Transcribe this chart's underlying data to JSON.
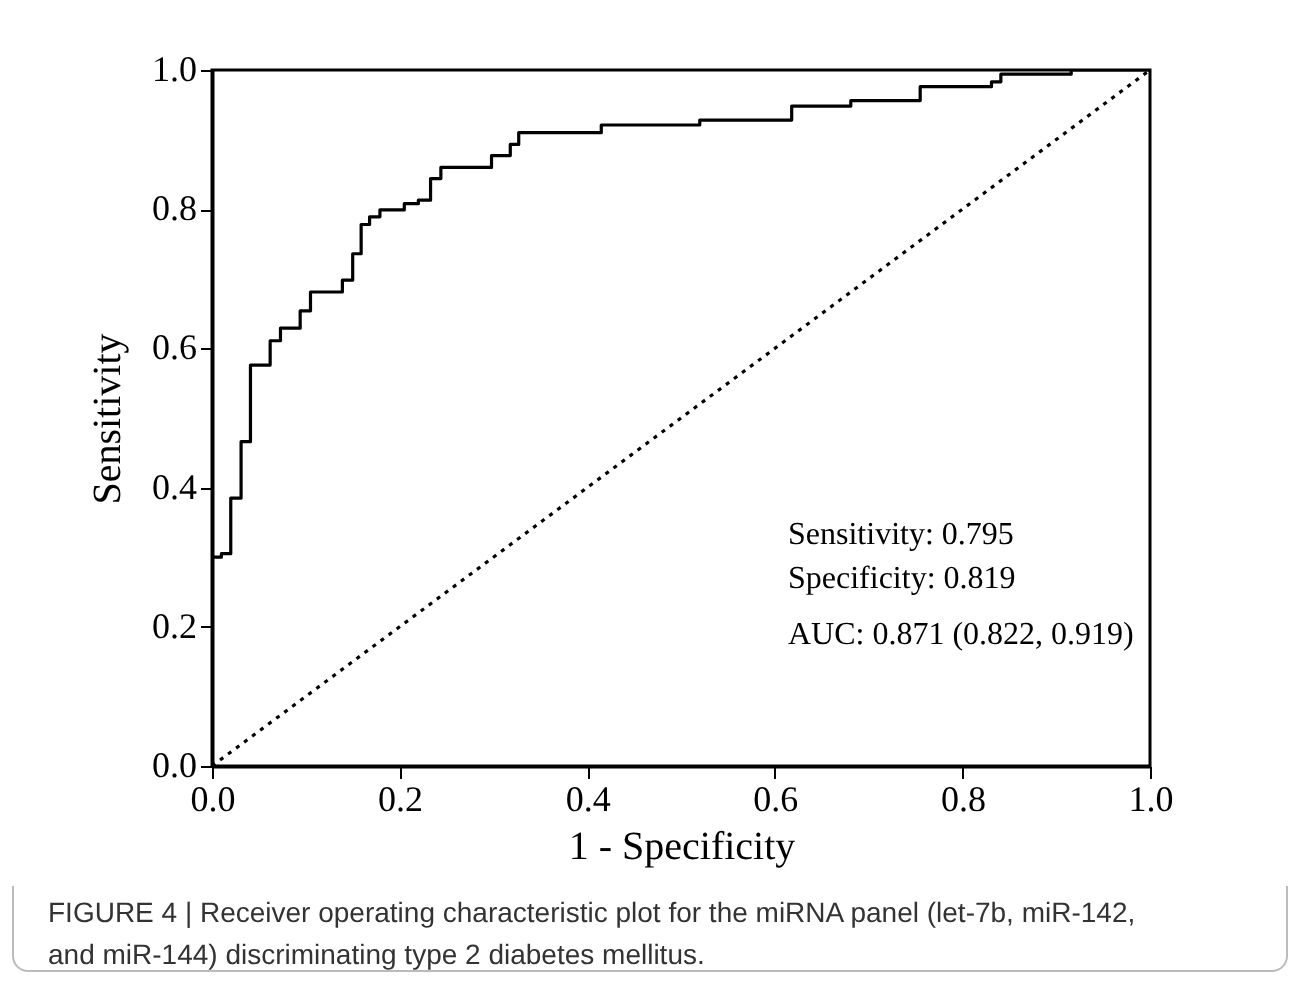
{
  "chart_data": {
    "type": "step",
    "xlabel": "1 - Specificity",
    "ylabel": "Sensitivity",
    "xlim": [
      0,
      1
    ],
    "ylim": [
      0,
      1
    ],
    "xticks": [
      {
        "value": 0,
        "label": "0.0"
      },
      {
        "value": 0.2,
        "label": "0.2"
      },
      {
        "value": 0.4,
        "label": "0.4"
      },
      {
        "value": 0.6,
        "label": "0.6"
      },
      {
        "value": 0.8,
        "label": "0.8"
      },
      {
        "value": 1,
        "label": "1.0"
      }
    ],
    "yticks": [
      {
        "value": 0,
        "label": "0.0"
      },
      {
        "value": 0.2,
        "label": "0.2"
      },
      {
        "value": 0.4,
        "label": "0.4"
      },
      {
        "value": 0.6,
        "label": "0.6"
      },
      {
        "value": 0.8,
        "label": "0.8"
      },
      {
        "value": 1,
        "label": "1.0"
      }
    ],
    "grid": false,
    "series": [
      {
        "type": "step",
        "color": "#000000",
        "line_style": "solid",
        "x": [
          0,
          0,
          0.01,
          0.02,
          0.031,
          0.041,
          0.062,
          0.073,
          0.094,
          0.105,
          0.139,
          0.15,
          0.159,
          0.168,
          0.179,
          0.205,
          0.22,
          0.233,
          0.244,
          0.298,
          0.318,
          0.327,
          0.415,
          0.52,
          0.618,
          0.681,
          0.755,
          0.831,
          0.841,
          0.916,
          1
        ],
        "values": [
          0,
          0.3,
          0.305,
          0.385,
          0.466,
          0.576,
          0.611,
          0.629,
          0.654,
          0.681,
          0.698,
          0.736,
          0.778,
          0.789,
          0.799,
          0.808,
          0.813,
          0.844,
          0.86,
          0.877,
          0.893,
          0.91,
          0.921,
          0.928,
          0.948,
          0.956,
          0.976,
          0.983,
          0.994,
          1,
          1
        ]
      },
      {
        "type": "line",
        "color": "#000000",
        "line_style": "dotted",
        "x": [
          0,
          1
        ],
        "values": [
          0,
          1
        ]
      }
    ],
    "annotations": [
      "Sensitivity: 0.795",
      "Specificity: 0.819",
      "AUC: 0.871 (0.822, 0.919)",
      "FIGURE 4 | Receiver operating characteristic plot for the miRNA panel (let-7b, miR-142, and miR-144) discriminating type 2 diabetes mellitus."
    ]
  }
}
